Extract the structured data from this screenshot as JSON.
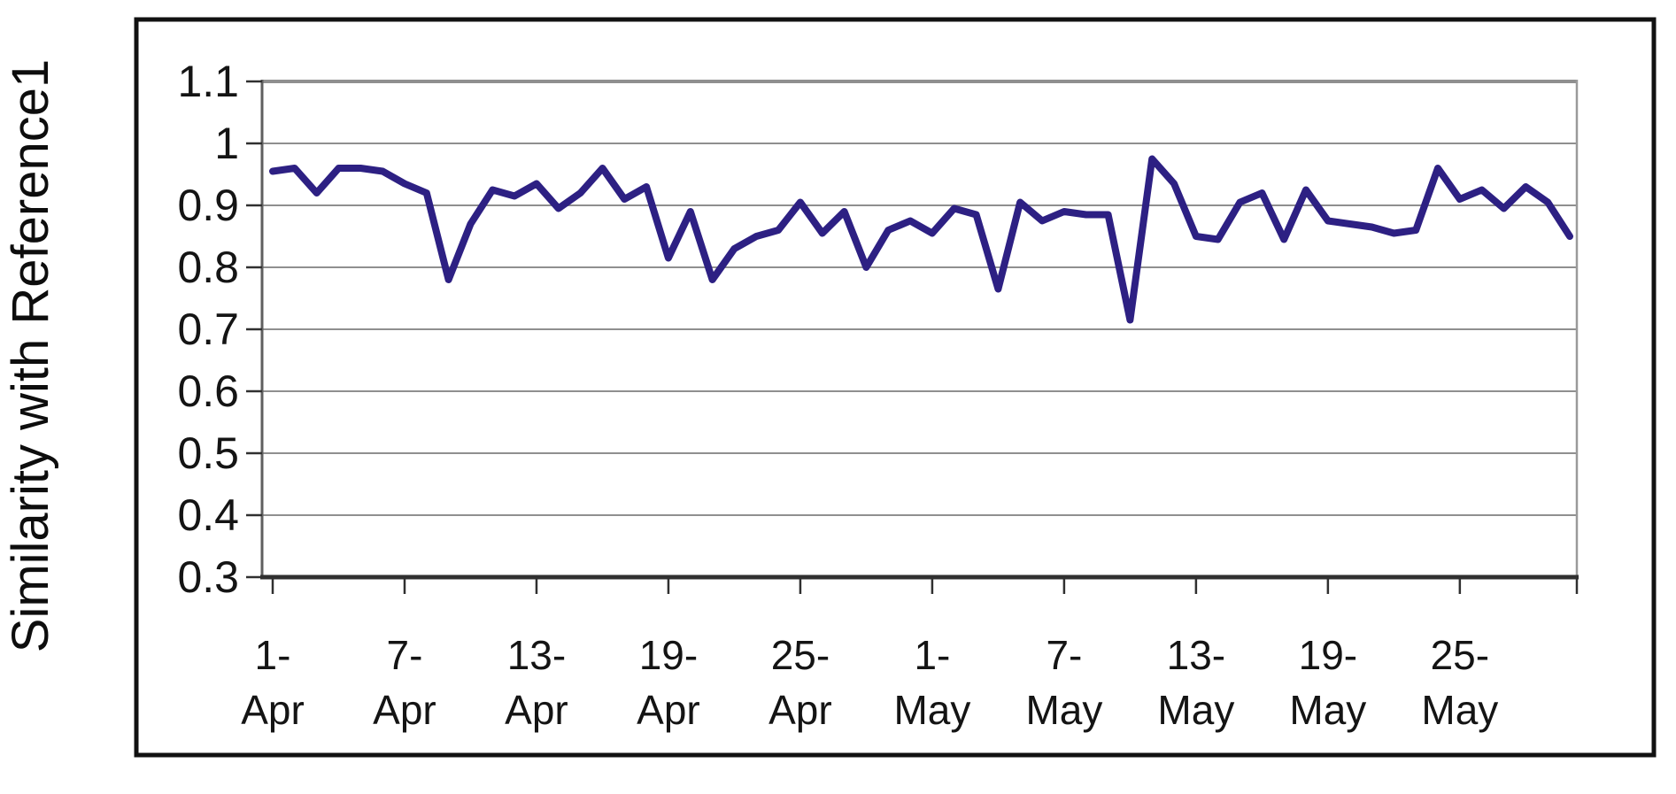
{
  "chart": {
    "y_axis_title": "Similarity with Reference1",
    "y_tick_labels": [
      "1.1",
      "1",
      "0.9",
      "0.8",
      "0.7",
      "0.6",
      "0.5",
      "0.4",
      "0.3"
    ],
    "x_tick_labels": [
      [
        "1-",
        "Apr"
      ],
      [
        "7-",
        "Apr"
      ],
      [
        "13-",
        "Apr"
      ],
      [
        "19-",
        "Apr"
      ],
      [
        "25-",
        "Apr"
      ],
      [
        "1-",
        "May"
      ],
      [
        "7-",
        "May"
      ],
      [
        "13-",
        "May"
      ],
      [
        "19-",
        "May"
      ],
      [
        "25-",
        "May"
      ]
    ],
    "x_tick_indices": [
      0,
      6,
      12,
      18,
      24,
      30,
      36,
      42,
      48,
      54
    ],
    "colors": {
      "line": "#2d2083",
      "gridline": "#8f8f8f",
      "axis": "#303030",
      "left_axis": "#5f5f5f",
      "right_edge": "#9a9a9a",
      "border": "#111111",
      "text": "#141414"
    }
  },
  "chart_data": {
    "type": "line",
    "title": "",
    "xlabel": "",
    "ylabel": "Similarity with Reference1",
    "ylim": [
      0.3,
      1.1
    ],
    "y_tick_step": 0.1,
    "grid": true,
    "legend_position": "none",
    "x": [
      "1-Apr",
      "2-Apr",
      "3-Apr",
      "4-Apr",
      "5-Apr",
      "6-Apr",
      "7-Apr",
      "8-Apr",
      "9-Apr",
      "10-Apr",
      "11-Apr",
      "12-Apr",
      "13-Apr",
      "14-Apr",
      "15-Apr",
      "16-Apr",
      "17-Apr",
      "18-Apr",
      "19-Apr",
      "20-Apr",
      "21-Apr",
      "22-Apr",
      "23-Apr",
      "24-Apr",
      "25-Apr",
      "26-Apr",
      "27-Apr",
      "28-Apr",
      "29-Apr",
      "30-Apr",
      "1-May",
      "2-May",
      "3-May",
      "4-May",
      "5-May",
      "6-May",
      "7-May",
      "8-May",
      "9-May",
      "10-May",
      "11-May",
      "12-May",
      "13-May",
      "14-May",
      "15-May",
      "16-May",
      "17-May",
      "18-May",
      "19-May",
      "20-May",
      "21-May",
      "22-May",
      "23-May",
      "24-May",
      "25-May",
      "26-May",
      "27-May",
      "28-May",
      "29-May",
      "30-May"
    ],
    "series": [
      {
        "name": "Similarity with Reference1",
        "values": [
          0.955,
          0.96,
          0.92,
          0.96,
          0.96,
          0.955,
          0.935,
          0.92,
          0.78,
          0.87,
          0.925,
          0.915,
          0.935,
          0.895,
          0.92,
          0.96,
          0.91,
          0.93,
          0.815,
          0.89,
          0.78,
          0.83,
          0.85,
          0.86,
          0.905,
          0.855,
          0.89,
          0.8,
          0.86,
          0.875,
          0.855,
          0.895,
          0.885,
          0.765,
          0.905,
          0.875,
          0.89,
          0.885,
          0.885,
          0.715,
          0.975,
          0.935,
          0.85,
          0.845,
          0.905,
          0.92,
          0.845,
          0.925,
          0.875,
          0.87,
          0.865,
          0.855,
          0.86,
          0.96,
          0.91,
          0.925,
          0.895,
          0.93,
          0.905,
          0.85
        ]
      }
    ]
  }
}
